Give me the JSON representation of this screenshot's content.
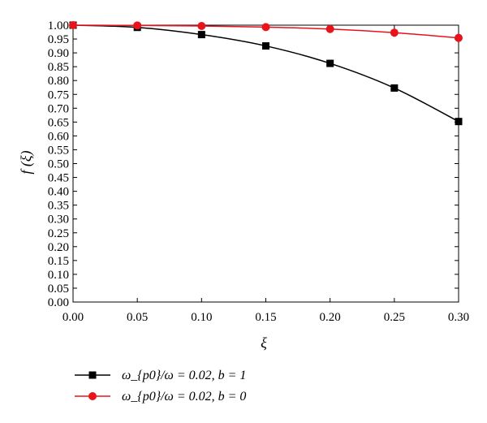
{
  "chart_data": {
    "type": "line",
    "xlabel": "ξ",
    "ylabel": "f (ξ)",
    "xlim": [
      0.0,
      0.3
    ],
    "ylim": [
      0.0,
      1.0
    ],
    "x_ticks": [
      "0.00",
      "0.05",
      "0.10",
      "0.15",
      "0.20",
      "0.25",
      "0.30"
    ],
    "y_ticks": [
      "0.00",
      "0.05",
      "0.10",
      "0.15",
      "0.20",
      "0.25",
      "0.30",
      "0.35",
      "0.40",
      "0.45",
      "0.50",
      "0.55",
      "0.60",
      "0.65",
      "0.70",
      "0.75",
      "0.80",
      "0.85",
      "0.90",
      "0.95",
      "1.00"
    ],
    "x": [
      0.0,
      0.05,
      0.1,
      0.15,
      0.2,
      0.25,
      0.3
    ],
    "series": [
      {
        "name": "ω_{p0}/ω = 0.02, b = 1",
        "color": "#000000",
        "marker": "square",
        "values": [
          1.0,
          0.992,
          0.966,
          0.925,
          0.862,
          0.773,
          0.652
        ]
      },
      {
        "name": "ω_{p0}/ω = 0.02, b = 0",
        "color": "#e8141b",
        "marker": "circle",
        "values": [
          1.0,
          0.999,
          0.997,
          0.993,
          0.986,
          0.973,
          0.954
        ]
      }
    ],
    "legend_position": "bottom-left",
    "grid": false
  }
}
